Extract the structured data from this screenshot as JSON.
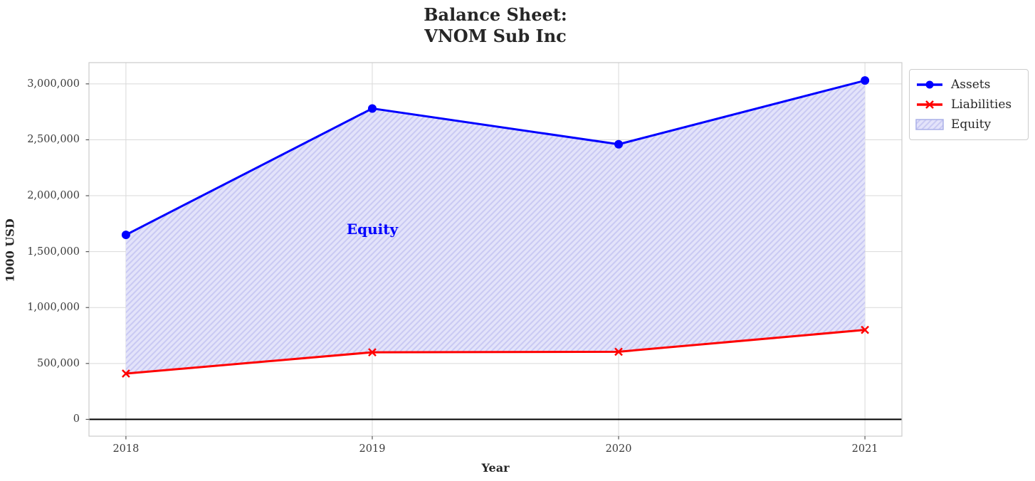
{
  "header": {
    "title_line1": "Balance Sheet:",
    "title_line2": "VNOM Sub Inc"
  },
  "chart_data": {
    "type": "line",
    "title": "Balance Sheet: VNOM Sub Inc",
    "xlabel": "Year",
    "ylabel": "1000 USD",
    "x": [
      2018,
      2019,
      2020,
      2021
    ],
    "x_tick_labels": [
      "2018",
      "2019",
      "2020",
      "2021"
    ],
    "y_ticks": [
      0,
      500000,
      1000000,
      1500000,
      2000000,
      2500000,
      3000000
    ],
    "y_tick_labels": [
      "0",
      "500,000",
      "1,000,000",
      "1,500,000",
      "2,000,000",
      "2,500,000",
      "3,000,000"
    ],
    "xlim": [
      2017.85,
      2021.15
    ],
    "ylim": [
      -150000,
      3190000
    ],
    "grid": true,
    "series": [
      {
        "name": "Assets",
        "color": "#0000ff",
        "marker": "circle",
        "values": [
          1650000,
          2780000,
          2460000,
          3030000
        ]
      },
      {
        "name": "Liabilities",
        "color": "#ff0000",
        "marker": "x",
        "values": [
          410000,
          600000,
          605000,
          800000
        ]
      }
    ],
    "fill_between": {
      "name": "Equity",
      "between": [
        "Assets",
        "Liabilities"
      ],
      "fill_color": "#e3e3fa",
      "hatch_color": "#c9c9f3",
      "hatch": "//"
    },
    "annotation": {
      "text": "Equity",
      "x": 2019,
      "y": 1700000,
      "color": "#0000ff"
    },
    "zero_line": {
      "y": 0,
      "color": "#000000"
    },
    "legend": {
      "position": "outside upper right",
      "entries": [
        "Assets",
        "Liabilities",
        "Equity"
      ]
    }
  },
  "colors": {
    "grid": "#d9d9d9",
    "plot_border": "#cccccc",
    "tick": "#555555",
    "text": "#262626",
    "background": "#ffffff"
  }
}
